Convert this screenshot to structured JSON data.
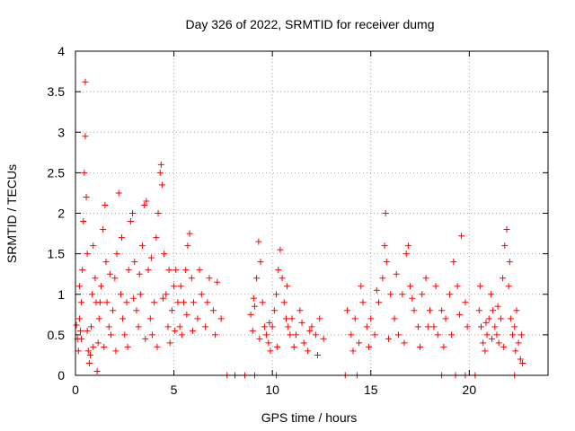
{
  "chart_data": {
    "type": "scatter",
    "title": "Day 326 of 2022, SRMTID for receiver dumg",
    "xlabel": "GPS time / hours",
    "ylabel": "SRMTID / TECUs",
    "xlim": [
      0,
      24
    ],
    "ylim": [
      0,
      4
    ],
    "xticks": [
      0,
      5,
      10,
      15,
      20
    ],
    "yticks": [
      0,
      0.5,
      1,
      1.5,
      2,
      2.5,
      3,
      3.5,
      4
    ],
    "ytick_labels": [
      "0",
      "0.5",
      "1",
      "1.5",
      "2",
      "2.5",
      "3",
      "3.5",
      "4"
    ],
    "grid": true,
    "marker": "+",
    "color": "#ff0000",
    "series": [
      {
        "name": "SRMTID",
        "points": [
          [
            0.05,
            0.62
          ],
          [
            0.1,
            0.45
          ],
          [
            0.15,
            0.3
          ],
          [
            0.2,
            0.7
          ],
          [
            0.25,
            0.55
          ],
          [
            0.3,
            0.9
          ],
          [
            0.35,
            1.3
          ],
          [
            0.4,
            1.9
          ],
          [
            0.45,
            2.5
          ],
          [
            0.5,
            2.95
          ],
          [
            0.55,
            2.2
          ],
          [
            0.6,
            1.5
          ],
          [
            0.65,
            0.3
          ],
          [
            0.7,
            0.15
          ],
          [
            0.75,
            0.25
          ],
          [
            0.8,
            0.6
          ],
          [
            0.85,
            1.0
          ],
          [
            0.9,
            1.6
          ],
          [
            1.0,
            1.2
          ],
          [
            1.05,
            0.9
          ],
          [
            1.1,
            0.05
          ],
          [
            1.15,
            0.4
          ],
          [
            1.2,
            0.7
          ],
          [
            1.3,
            1.1
          ],
          [
            1.4,
            1.8
          ],
          [
            1.5,
            2.1
          ],
          [
            1.55,
            1.4
          ],
          [
            1.6,
            0.9
          ],
          [
            1.7,
            0.6
          ],
          [
            1.8,
            0.5
          ],
          [
            1.9,
            0.8
          ],
          [
            2.0,
            1.2
          ],
          [
            2.1,
            1.5
          ],
          [
            2.2,
            2.25
          ],
          [
            2.3,
            1.0
          ],
          [
            2.4,
            0.7
          ],
          [
            2.5,
            0.5
          ],
          [
            2.6,
            0.9
          ],
          [
            2.7,
            1.3
          ],
          [
            2.8,
            1.9
          ],
          [
            2.9,
            2.0
          ],
          [
            3.0,
            1.4
          ],
          [
            3.1,
            0.8
          ],
          [
            3.2,
            0.6
          ],
          [
            3.3,
            1.0
          ],
          [
            3.4,
            1.6
          ],
          [
            3.5,
            2.1
          ],
          [
            3.6,
            2.15
          ],
          [
            3.7,
            1.3
          ],
          [
            3.8,
            0.7
          ],
          [
            3.9,
            0.5
          ],
          [
            4.0,
            0.9
          ],
          [
            4.1,
            1.7
          ],
          [
            4.2,
            2.0
          ],
          [
            4.3,
            2.5
          ],
          [
            4.35,
            2.6
          ],
          [
            4.4,
            2.35
          ],
          [
            4.5,
            1.5
          ],
          [
            4.6,
            1.0
          ],
          [
            4.7,
            0.6
          ],
          [
            4.8,
            0.4
          ],
          [
            4.9,
            0.8
          ],
          [
            5.0,
            1.1
          ],
          [
            5.1,
            1.3
          ],
          [
            5.2,
            0.9
          ],
          [
            5.3,
            0.6
          ],
          [
            5.4,
            0.5
          ],
          [
            5.5,
            0.9
          ],
          [
            5.6,
            1.3
          ],
          [
            5.7,
            1.6
          ],
          [
            5.8,
            1.75
          ],
          [
            5.9,
            1.2
          ],
          [
            6.0,
            0.9
          ],
          [
            6.2,
            0.7
          ],
          [
            6.4,
            1.0
          ],
          [
            6.6,
            0.6
          ],
          [
            6.8,
            1.2
          ],
          [
            7.0,
            0.8
          ],
          [
            7.2,
            1.15
          ],
          [
            7.4,
            0.7
          ],
          [
            0.5,
            3.62
          ],
          [
            0.2,
            1.1
          ],
          [
            0.3,
            0.45
          ],
          [
            0.6,
            0.55
          ],
          [
            0.9,
            0.35
          ],
          [
            1.25,
            0.9
          ],
          [
            1.45,
            0.35
          ],
          [
            1.75,
            1.25
          ],
          [
            2.05,
            0.3
          ],
          [
            2.35,
            1.7
          ],
          [
            2.65,
            0.35
          ],
          [
            2.95,
            0.95
          ],
          [
            3.25,
            1.25
          ],
          [
            3.55,
            0.45
          ],
          [
            3.85,
            1.45
          ],
          [
            4.15,
            0.35
          ],
          [
            4.45,
            0.95
          ],
          [
            4.75,
            1.3
          ],
          [
            5.05,
            0.55
          ],
          [
            5.35,
            1.1
          ],
          [
            5.65,
            0.75
          ],
          [
            5.95,
            0.55
          ],
          [
            6.3,
            1.3
          ],
          [
            6.7,
            0.9
          ],
          [
            7.1,
            0.5
          ],
          [
            8.9,
            0.75
          ],
          [
            9.0,
            0.55
          ],
          [
            9.1,
            0.85
          ],
          [
            9.2,
            1.2
          ],
          [
            9.3,
            1.65
          ],
          [
            9.4,
            1.4
          ],
          [
            9.5,
            0.9
          ],
          [
            9.6,
            0.6
          ],
          [
            9.7,
            0.5
          ],
          [
            9.8,
            0.4
          ],
          [
            9.9,
            0.3
          ],
          [
            10.0,
            0.6
          ],
          [
            10.1,
            0.8
          ],
          [
            10.2,
            1.0
          ],
          [
            10.3,
            1.3
          ],
          [
            10.4,
            1.55
          ],
          [
            10.5,
            1.2
          ],
          [
            10.6,
            0.9
          ],
          [
            10.7,
            0.7
          ],
          [
            10.8,
            0.6
          ],
          [
            10.9,
            0.5
          ],
          [
            11.0,
            0.7
          ],
          [
            11.2,
            0.5
          ],
          [
            11.4,
            0.8
          ],
          [
            11.6,
            0.4
          ],
          [
            11.8,
            0.3
          ],
          [
            12.0,
            0.6
          ],
          [
            12.2,
            0.5
          ],
          [
            12.4,
            0.7
          ],
          [
            12.6,
            0.45
          ],
          [
            9.05,
            0.95
          ],
          [
            9.35,
            0.45
          ],
          [
            9.85,
            0.65
          ],
          [
            10.25,
            0.35
          ],
          [
            10.75,
            1.1
          ],
          [
            11.1,
            0.35
          ],
          [
            11.5,
            0.65
          ],
          [
            11.9,
            0.55
          ],
          [
            12.3,
            0.25
          ],
          [
            13.8,
            0.8
          ],
          [
            14.0,
            0.5
          ],
          [
            14.2,
            0.7
          ],
          [
            14.4,
            0.4
          ],
          [
            14.6,
            0.9
          ],
          [
            14.8,
            0.6
          ],
          [
            15.0,
            0.7
          ],
          [
            15.2,
            0.5
          ],
          [
            15.4,
            0.9
          ],
          [
            15.6,
            1.2
          ],
          [
            15.7,
            1.6
          ],
          [
            15.75,
            2.0
          ],
          [
            15.8,
            1.4
          ],
          [
            16.0,
            1.0
          ],
          [
            16.2,
            0.7
          ],
          [
            16.4,
            0.5
          ],
          [
            16.6,
            1.0
          ],
          [
            16.8,
            1.5
          ],
          [
            16.9,
            1.6
          ],
          [
            17.0,
            1.1
          ],
          [
            17.2,
            0.8
          ],
          [
            17.4,
            0.6
          ],
          [
            17.6,
            1.0
          ],
          [
            17.8,
            1.2
          ],
          [
            18.0,
            0.8
          ],
          [
            18.2,
            0.6
          ],
          [
            18.4,
            0.5
          ],
          [
            18.6,
            0.8
          ],
          [
            18.8,
            0.7
          ],
          [
            19.0,
            1.0
          ],
          [
            19.2,
            1.4
          ],
          [
            19.4,
            1.1
          ],
          [
            19.6,
            1.72
          ],
          [
            19.8,
            0.9
          ],
          [
            19.9,
            0.6
          ],
          [
            14.1,
            0.3
          ],
          [
            14.5,
            1.1
          ],
          [
            14.9,
            0.35
          ],
          [
            15.3,
            1.05
          ],
          [
            15.9,
            0.45
          ],
          [
            16.3,
            1.25
          ],
          [
            16.7,
            0.4
          ],
          [
            17.1,
            0.95
          ],
          [
            17.5,
            0.35
          ],
          [
            17.9,
            0.6
          ],
          [
            18.3,
            1.1
          ],
          [
            18.7,
            0.35
          ],
          [
            19.1,
            0.5
          ],
          [
            19.5,
            0.75
          ],
          [
            20.5,
            0.8
          ],
          [
            20.6,
            0.6
          ],
          [
            20.7,
            0.4
          ],
          [
            20.8,
            0.3
          ],
          [
            20.9,
            0.5
          ],
          [
            21.0,
            0.7
          ],
          [
            21.1,
            1.0
          ],
          [
            21.2,
            0.8
          ],
          [
            21.3,
            0.6
          ],
          [
            21.4,
            0.5
          ],
          [
            21.5,
            0.4
          ],
          [
            21.6,
            0.7
          ],
          [
            21.7,
            1.2
          ],
          [
            21.8,
            1.6
          ],
          [
            21.9,
            1.8
          ],
          [
            22.0,
            1.1
          ],
          [
            22.1,
            0.7
          ],
          [
            22.2,
            0.5
          ],
          [
            22.3,
            0.6
          ],
          [
            22.4,
            0.8
          ],
          [
            22.5,
            0.4
          ],
          [
            22.6,
            0.2
          ],
          [
            22.7,
            0.15
          ],
          [
            20.55,
            1.1
          ],
          [
            20.85,
            0.65
          ],
          [
            21.15,
            0.45
          ],
          [
            21.45,
            0.85
          ],
          [
            21.75,
            0.35
          ],
          [
            22.05,
            1.4
          ],
          [
            22.35,
            0.3
          ],
          [
            22.65,
            0.5
          ],
          [
            7.7,
            0
          ],
          [
            8.1,
            0
          ],
          [
            8.6,
            0
          ],
          [
            9.1,
            0
          ],
          [
            10.2,
            0
          ],
          [
            13.7,
            0
          ],
          [
            14.3,
            0
          ],
          [
            18.6,
            0
          ],
          [
            19.3,
            0
          ],
          [
            19.8,
            0
          ],
          [
            20.3,
            0
          ],
          [
            22.3,
            0
          ]
        ]
      }
    ]
  }
}
